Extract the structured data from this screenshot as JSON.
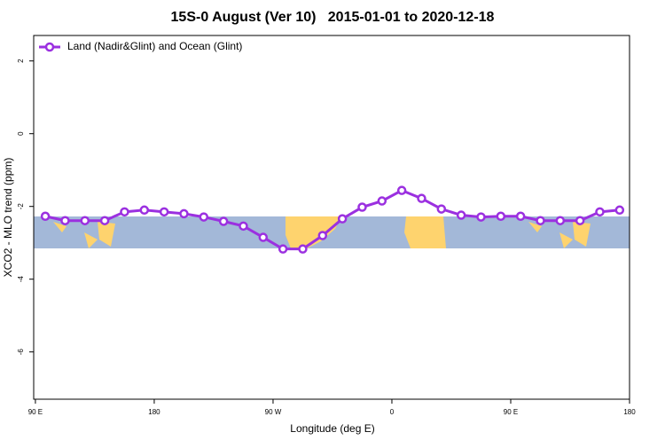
{
  "chart_data": {
    "type": "line",
    "title": "15S-0 August (Ver 10)   2015-01-01 to 2020-12-18",
    "xlabel": "Longitude (deg E)",
    "ylabel": "XCO2 - MLO trend (ppm)",
    "x": [
      97.5,
      112.5,
      127.5,
      142.5,
      157.5,
      172.5,
      187.5,
      202.5,
      217.5,
      232.5,
      247.5,
      262.5,
      277.5,
      292.5,
      307.5,
      322.5,
      337.5,
      352.5,
      367.5,
      382.5,
      397.5,
      412.5,
      427.5,
      442.5,
      457.5,
      472.5,
      487.5,
      502.5,
      517.5,
      532.5
    ],
    "series": [
      {
        "name": "Land (Nadir&Glint) and Ocean (Glint)",
        "color": "#9b30e0",
        "values": [
          -2.27,
          -2.39,
          -2.39,
          -2.39,
          -2.15,
          -2.1,
          -2.15,
          -2.2,
          -2.29,
          -2.41,
          -2.54,
          -2.85,
          -3.17,
          -3.17,
          -2.8,
          -2.34,
          -2.02,
          -1.85,
          -1.56,
          -1.78,
          -2.07,
          -2.24,
          -2.29,
          -2.27,
          -2.27,
          -2.39,
          -2.39,
          -2.39,
          -2.15,
          -2.1
        ]
      }
    ],
    "xlim": [
      88.7,
      540
    ],
    "ylim": [
      -7.3,
      2.7
    ],
    "xticks": [
      {
        "value": 90,
        "label": "90 E"
      },
      {
        "value": 180,
        "label": "180"
      },
      {
        "value": 270,
        "label": "90 W"
      },
      {
        "value": 360,
        "label": "0"
      },
      {
        "value": 450,
        "label": "90 E"
      },
      {
        "value": 540,
        "label": "180"
      }
    ],
    "yticks": [
      2,
      0,
      -2,
      -4,
      -6
    ],
    "legend": "top-left"
  }
}
